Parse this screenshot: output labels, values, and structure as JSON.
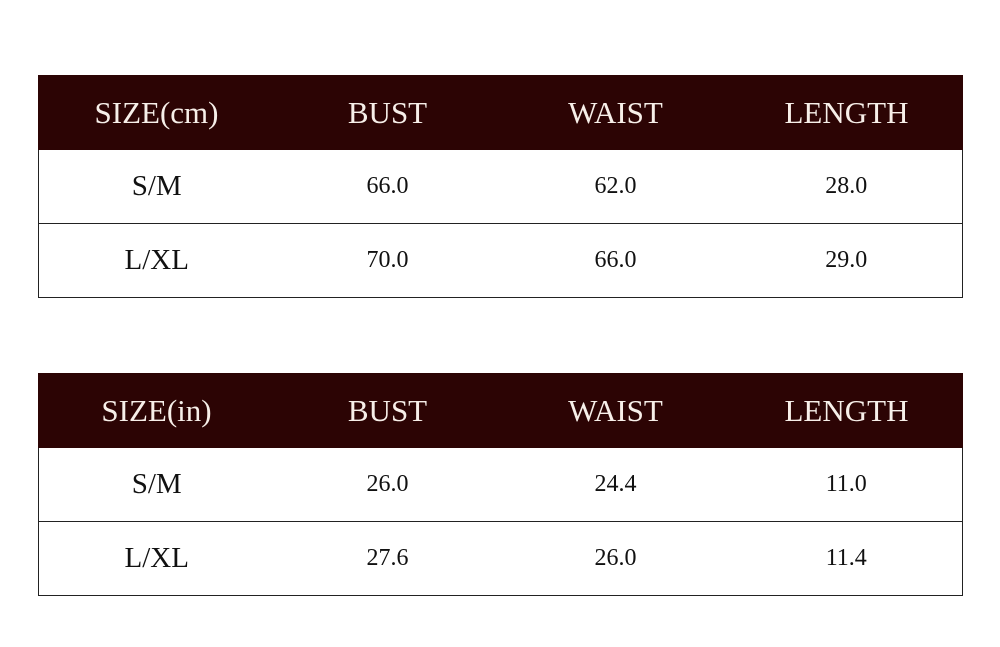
{
  "tables": [
    {
      "headers": [
        "SIZE(cm)",
        "BUST",
        "WAIST",
        "LENGTH"
      ],
      "rows": [
        [
          "S/M",
          "66.0",
          "62.0",
          "28.0"
        ],
        [
          "L/XL",
          "70.0",
          "66.0",
          "29.0"
        ]
      ]
    },
    {
      "headers": [
        "SIZE(in)",
        "BUST",
        "WAIST",
        "LENGTH"
      ],
      "rows": [
        [
          "S/M",
          "26.0",
          "24.4",
          "11.0"
        ],
        [
          "L/XL",
          "27.6",
          "26.0",
          "11.4"
        ]
      ]
    }
  ],
  "colors": {
    "header_bg": "#2c0404",
    "header_text": "#f7efe9"
  }
}
